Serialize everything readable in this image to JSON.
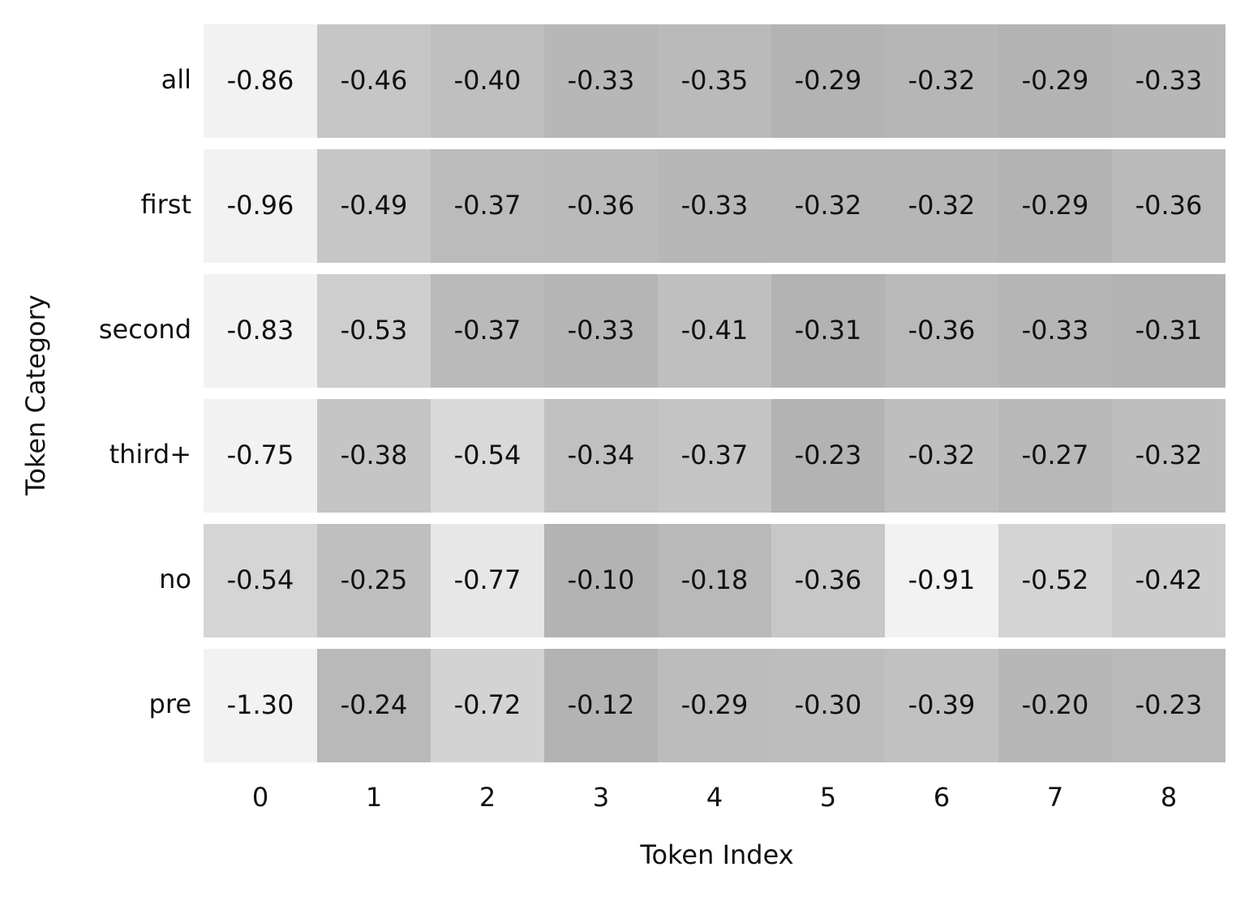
{
  "chart_data": {
    "type": "heatmap",
    "x_label": "Token Index",
    "y_label": "Token Category",
    "x_categories": [
      0,
      1,
      2,
      3,
      4,
      5,
      6,
      7,
      8
    ],
    "y_categories": [
      "all",
      "first",
      "second",
      "third+",
      "no",
      "pre"
    ],
    "values": [
      [
        -0.86,
        -0.46,
        -0.4,
        -0.33,
        -0.35,
        -0.29,
        -0.32,
        -0.29,
        -0.33
      ],
      [
        -0.96,
        -0.49,
        -0.37,
        -0.36,
        -0.33,
        -0.32,
        -0.32,
        -0.29,
        -0.36
      ],
      [
        -0.83,
        -0.53,
        -0.37,
        -0.33,
        -0.41,
        -0.31,
        -0.36,
        -0.33,
        -0.31
      ],
      [
        -0.75,
        -0.38,
        -0.54,
        -0.34,
        -0.37,
        -0.23,
        -0.32,
        -0.27,
        -0.32
      ],
      [
        -0.54,
        -0.25,
        -0.77,
        -0.1,
        -0.18,
        -0.36,
        -0.91,
        -0.52,
        -0.42
      ],
      [
        -1.3,
        -0.24,
        -0.72,
        -0.12,
        -0.29,
        -0.3,
        -0.39,
        -0.2,
        -0.23
      ]
    ],
    "value_labels": [
      [
        "-0.86",
        "-0.46",
        "-0.40",
        "-0.33",
        "-0.35",
        "-0.29",
        "-0.32",
        "-0.29",
        "-0.33"
      ],
      [
        "-0.96",
        "-0.49",
        "-0.37",
        "-0.36",
        "-0.33",
        "-0.32",
        "-0.32",
        "-0.29",
        "-0.36"
      ],
      [
        "-0.83",
        "-0.53",
        "-0.37",
        "-0.33",
        "-0.41",
        "-0.31",
        "-0.36",
        "-0.33",
        "-0.31"
      ],
      [
        "-0.75",
        "-0.38",
        "-0.54",
        "-0.34",
        "-0.37",
        "-0.23",
        "-0.32",
        "-0.27",
        "-0.32"
      ],
      [
        "-0.54",
        "-0.25",
        "-0.77",
        "-0.10",
        "-0.18",
        "-0.36",
        "-0.91",
        "-0.52",
        "-0.42"
      ],
      [
        "-1.30",
        "-0.24",
        "-0.72",
        "-0.12",
        "-0.29",
        "-0.30",
        "-0.39",
        "-0.20",
        "-0.23"
      ]
    ],
    "colormap": [
      "#f2f2f2",
      "#b3b3b3"
    ],
    "normalize": "row"
  }
}
